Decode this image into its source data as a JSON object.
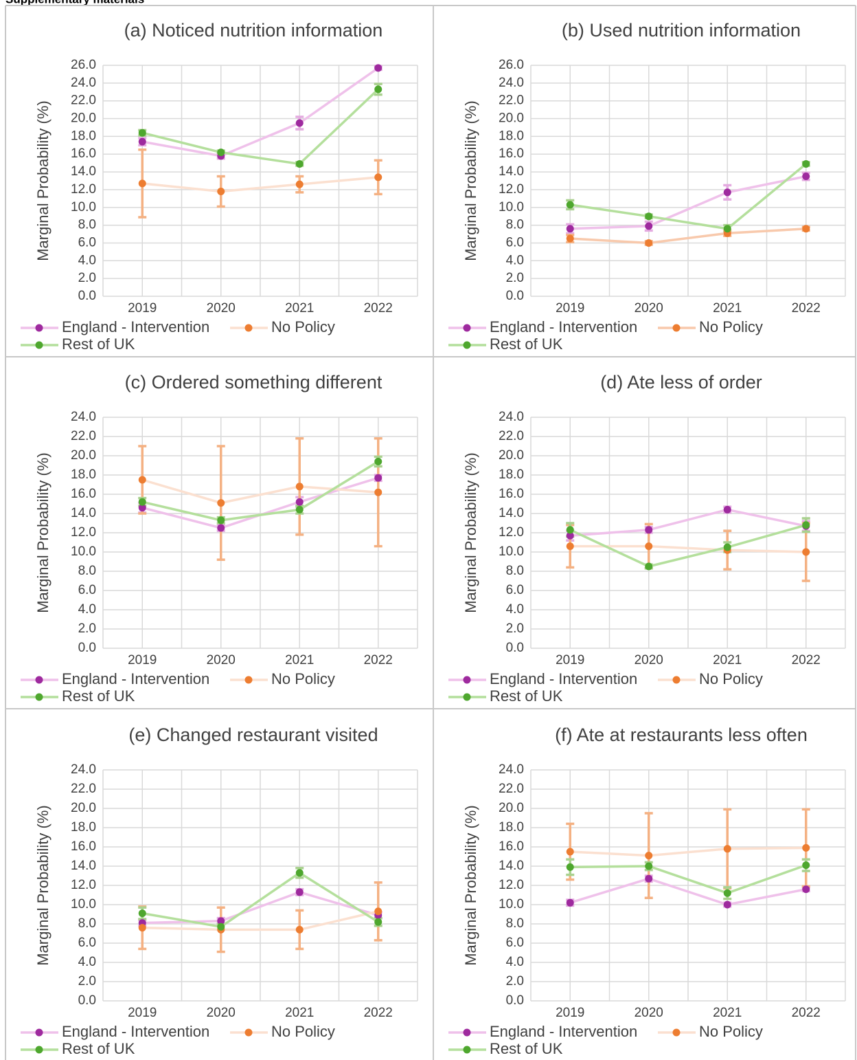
{
  "header": "Supplementary materials",
  "chart_data": [
    {
      "type": "line",
      "title": "(a) Noticed nutrition information",
      "y_label": "Marginal Probability (%)",
      "categories": [
        "2019",
        "2020",
        "2021",
        "2022"
      ],
      "grid": true,
      "ylim": [
        0,
        26
      ],
      "yticks": [
        {
          "value": 0,
          "label": "0.0"
        },
        {
          "value": 2,
          "label": "2.0"
        },
        {
          "value": 4,
          "label": "4.0"
        },
        {
          "value": 6,
          "label": "6.0"
        },
        {
          "value": 8,
          "label": "8.0"
        },
        {
          "value": 10,
          "label": "10.0"
        },
        {
          "value": 12,
          "label": "12.0"
        },
        {
          "value": 14,
          "label": "14.0"
        },
        {
          "value": 16,
          "label": "16.0"
        },
        {
          "value": 18,
          "label": "18.0"
        },
        {
          "value": 20,
          "label": "20.0"
        },
        {
          "value": 22,
          "label": "22.0"
        },
        {
          "value": 24,
          "label": "24.0"
        },
        {
          "value": 26,
          "label": "26.0"
        }
      ],
      "series": [
        {
          "name": "England - Intervention",
          "line_color": "#efc1ea",
          "color": "#9e2a9e",
          "error_color": "#e4abe0",
          "values": [
            17.4,
            15.8,
            19.5,
            25.7
          ],
          "errors": [
            0.4,
            0.3,
            0.7,
            0.2
          ]
        },
        {
          "name": "No Policy",
          "line_color": "#fbe0d0",
          "color": "#ed7d31",
          "error_color": "#f4b183",
          "values": [
            12.7,
            11.8,
            12.6,
            13.4
          ],
          "errors": [
            3.8,
            1.7,
            0.9,
            1.9
          ]
        },
        {
          "name": "Rest of UK",
          "line_color": "#b4df9c",
          "color": "#4ea72e",
          "error_color": "#a9d18e",
          "values": [
            18.4,
            16.2,
            14.9,
            23.3
          ],
          "errors": [
            0.3,
            0.2,
            0.2,
            0.6
          ]
        }
      ]
    },
    {
      "type": "line",
      "title": "(b) Used nutrition information",
      "y_label": "Marginal Probability (%)",
      "categories": [
        "2019",
        "2020",
        "2021",
        "2022"
      ],
      "grid": true,
      "ylim": [
        0,
        26
      ],
      "yticks": [
        {
          "value": 0,
          "label": "0.0"
        },
        {
          "value": 2,
          "label": "2.0"
        },
        {
          "value": 4,
          "label": "4.0"
        },
        {
          "value": 6,
          "label": "6.0"
        },
        {
          "value": 8,
          "label": "8.0"
        },
        {
          "value": 10,
          "label": "10.0"
        },
        {
          "value": 12,
          "label": "12.0"
        },
        {
          "value": 14,
          "label": "14.0"
        },
        {
          "value": 16,
          "label": "16.0"
        },
        {
          "value": 18,
          "label": "18.0"
        },
        {
          "value": 20,
          "label": "20.0"
        },
        {
          "value": 22,
          "label": "22.0"
        },
        {
          "value": 24,
          "label": "24.0"
        },
        {
          "value": 26,
          "label": "26.0"
        }
      ],
      "series": [
        {
          "name": "England - Intervention",
          "line_color": "#efc1ea",
          "color": "#9e2a9e",
          "error_color": "#e4abe0",
          "values": [
            7.6,
            7.9,
            11.7,
            13.5
          ],
          "errors": [
            0.5,
            0.5,
            0.8,
            0.4
          ]
        },
        {
          "name": "No Policy",
          "line_color": "#f8c9ac",
          "color": "#ed7d31",
          "error_color": "#f4b183",
          "values": [
            6.5,
            6.0,
            7.1,
            7.6
          ],
          "errors": [
            0.4,
            0.2,
            0.3,
            0.2
          ]
        },
        {
          "name": "Rest of UK",
          "line_color": "#b4df9c",
          "color": "#4ea72e",
          "error_color": "#a9d18e",
          "values": [
            10.3,
            9.0,
            7.6,
            14.9
          ],
          "errors": [
            0.5,
            0.2,
            0.4,
            0.2
          ]
        }
      ]
    },
    {
      "type": "line",
      "title": "(c) Ordered something different",
      "y_label": "Marginal Probability (%)",
      "categories": [
        "2019",
        "2020",
        "2021",
        "2022"
      ],
      "grid": true,
      "ylim": [
        0,
        24
      ],
      "yticks": [
        {
          "value": 0,
          "label": "0.0"
        },
        {
          "value": 2,
          "label": "2.0"
        },
        {
          "value": 4,
          "label": "4.0"
        },
        {
          "value": 6,
          "label": "6.0"
        },
        {
          "value": 8,
          "label": "8.0"
        },
        {
          "value": 10,
          "label": "10.0"
        },
        {
          "value": 12,
          "label": "12.0"
        },
        {
          "value": 14,
          "label": "14.0"
        },
        {
          "value": 16,
          "label": "16.0"
        },
        {
          "value": 18,
          "label": "18.0"
        },
        {
          "value": 20,
          "label": "20.0"
        },
        {
          "value": 22,
          "label": "22.0"
        },
        {
          "value": 24,
          "label": "24.0"
        }
      ],
      "series": [
        {
          "name": "England - Intervention",
          "line_color": "#efc1ea",
          "color": "#9e2a9e",
          "error_color": "#e4abe0",
          "values": [
            14.6,
            12.5,
            15.2,
            17.7
          ],
          "errors": [
            0.5,
            0.3,
            0.5,
            0.3
          ]
        },
        {
          "name": "No Policy",
          "line_color": "#fbe0d0",
          "color": "#ed7d31",
          "error_color": "#f4b183",
          "values": [
            17.5,
            15.1,
            16.8,
            16.2
          ],
          "errors": [
            3.5,
            5.9,
            5.0,
            5.6
          ]
        },
        {
          "name": "Rest of UK",
          "line_color": "#b4df9c",
          "color": "#4ea72e",
          "error_color": "#a9d18e",
          "values": [
            15.2,
            13.3,
            14.4,
            19.4
          ],
          "errors": [
            0.4,
            0.3,
            0.4,
            0.5
          ]
        }
      ]
    },
    {
      "type": "line",
      "title": "(d) Ate less of order",
      "y_label": "Marginal Probability (%)",
      "categories": [
        "2019",
        "2020",
        "2021",
        "2022"
      ],
      "grid": true,
      "ylim": [
        0,
        24
      ],
      "yticks": [
        {
          "value": 0,
          "label": "0.0"
        },
        {
          "value": 2,
          "label": "2.0"
        },
        {
          "value": 4,
          "label": "4.0"
        },
        {
          "value": 6,
          "label": "6.0"
        },
        {
          "value": 8,
          "label": "8.0"
        },
        {
          "value": 10,
          "label": "10.0"
        },
        {
          "value": 12,
          "label": "12.0"
        },
        {
          "value": 14,
          "label": "14.0"
        },
        {
          "value": 16,
          "label": "16.0"
        },
        {
          "value": 18,
          "label": "18.0"
        },
        {
          "value": 20,
          "label": "20.0"
        },
        {
          "value": 22,
          "label": "22.0"
        },
        {
          "value": 24,
          "label": "24.0"
        }
      ],
      "series": [
        {
          "name": "England - Intervention",
          "line_color": "#efc1ea",
          "color": "#9e2a9e",
          "error_color": "#e4abe0",
          "values": [
            11.7,
            12.3,
            14.4,
            12.7
          ],
          "errors": [
            0.5,
            0.3,
            0.3,
            0.5
          ]
        },
        {
          "name": "No Policy",
          "line_color": "#fbe0d0",
          "color": "#ed7d31",
          "error_color": "#f4b183",
          "values": [
            10.6,
            10.6,
            10.2,
            10.0
          ],
          "errors": [
            2.2,
            2.3,
            2.0,
            3.0
          ]
        },
        {
          "name": "Rest of UK",
          "line_color": "#b4df9c",
          "color": "#4ea72e",
          "error_color": "#a9d18e",
          "values": [
            12.3,
            8.5,
            10.5,
            12.8
          ],
          "errors": [
            0.7,
            0.2,
            0.5,
            0.7
          ]
        }
      ]
    },
    {
      "type": "line",
      "title": "(e) Changed restaurant visited",
      "y_label": "Marginal Probability (%)",
      "categories": [
        "2019",
        "2020",
        "2021",
        "2022"
      ],
      "grid": true,
      "ylim": [
        0,
        24
      ],
      "yticks": [
        {
          "value": 0,
          "label": "0.0"
        },
        {
          "value": 2,
          "label": "2.0"
        },
        {
          "value": 4,
          "label": "4.0"
        },
        {
          "value": 6,
          "label": "6.0"
        },
        {
          "value": 8,
          "label": "8.0"
        },
        {
          "value": 10,
          "label": "10.0"
        },
        {
          "value": 12,
          "label": "12.0"
        },
        {
          "value": 14,
          "label": "14.0"
        },
        {
          "value": 16,
          "label": "16.0"
        },
        {
          "value": 18,
          "label": "18.0"
        },
        {
          "value": 20,
          "label": "20.0"
        },
        {
          "value": 22,
          "label": "22.0"
        },
        {
          "value": 24,
          "label": "24.0"
        }
      ],
      "series": [
        {
          "name": "England - Intervention",
          "line_color": "#efc1ea",
          "color": "#9e2a9e",
          "error_color": "#e4abe0",
          "values": [
            8.1,
            8.3,
            11.3,
            8.9
          ],
          "errors": [
            0.3,
            0.3,
            0.3,
            0.3
          ]
        },
        {
          "name": "No Policy",
          "line_color": "#fbe0d0",
          "color": "#ed7d31",
          "error_color": "#f4b183",
          "values": [
            7.6,
            7.4,
            7.4,
            9.3
          ],
          "errors": [
            2.2,
            2.3,
            2.0,
            3.0
          ]
        },
        {
          "name": "Rest of UK",
          "line_color": "#b4df9c",
          "color": "#4ea72e",
          "error_color": "#a9d18e",
          "values": [
            9.1,
            7.7,
            13.3,
            8.2
          ],
          "errors": [
            0.6,
            0.3,
            0.5,
            0.4
          ]
        }
      ]
    },
    {
      "type": "line",
      "title": "(f) Ate at restaurants less often",
      "y_label": "Marginal Probability (%)",
      "categories": [
        "2019",
        "2020",
        "2021",
        "2022"
      ],
      "grid": true,
      "ylim": [
        0,
        24
      ],
      "yticks": [
        {
          "value": 0,
          "label": "0.0"
        },
        {
          "value": 2,
          "label": "2.0"
        },
        {
          "value": 4,
          "label": "4.0"
        },
        {
          "value": 6,
          "label": "6.0"
        },
        {
          "value": 8,
          "label": "8.0"
        },
        {
          "value": 10,
          "label": "10.0"
        },
        {
          "value": 12,
          "label": "12.0"
        },
        {
          "value": 14,
          "label": "14.0"
        },
        {
          "value": 16,
          "label": "16.0"
        },
        {
          "value": 18,
          "label": "18.0"
        },
        {
          "value": 20,
          "label": "20.0"
        },
        {
          "value": 22,
          "label": "22.0"
        },
        {
          "value": 24,
          "label": "24.0"
        }
      ],
      "series": [
        {
          "name": "England - Intervention",
          "line_color": "#efc1ea",
          "color": "#9e2a9e",
          "error_color": "#e4abe0",
          "values": [
            10.2,
            12.7,
            10.0,
            11.6
          ],
          "errors": [
            0.3,
            0.3,
            0.2,
            0.2
          ]
        },
        {
          "name": "No Policy",
          "line_color": "#fbe0d0",
          "color": "#ed7d31",
          "error_color": "#f4b183",
          "values": [
            15.5,
            15.1,
            15.8,
            15.9
          ],
          "errors": [
            2.9,
            4.4,
            4.1,
            4.0
          ]
        },
        {
          "name": "Rest of UK",
          "line_color": "#b4df9c",
          "color": "#4ea72e",
          "error_color": "#a9d18e",
          "values": [
            13.9,
            14.0,
            11.2,
            14.1
          ],
          "errors": [
            0.8,
            0.4,
            0.6,
            0.6
          ]
        }
      ]
    }
  ]
}
